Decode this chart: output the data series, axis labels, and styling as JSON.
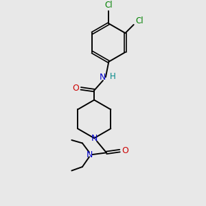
{
  "background_color": "#e8e8e8",
  "bond_color": "#000000",
  "N_color": "#0000cc",
  "O_color": "#cc0000",
  "Cl_color": "#008000",
  "H_color": "#008888",
  "figsize": [
    3.0,
    3.0
  ],
  "dpi": 100,
  "xlim": [
    -1.6,
    1.6
  ],
  "ylim": [
    -2.6,
    2.6
  ]
}
